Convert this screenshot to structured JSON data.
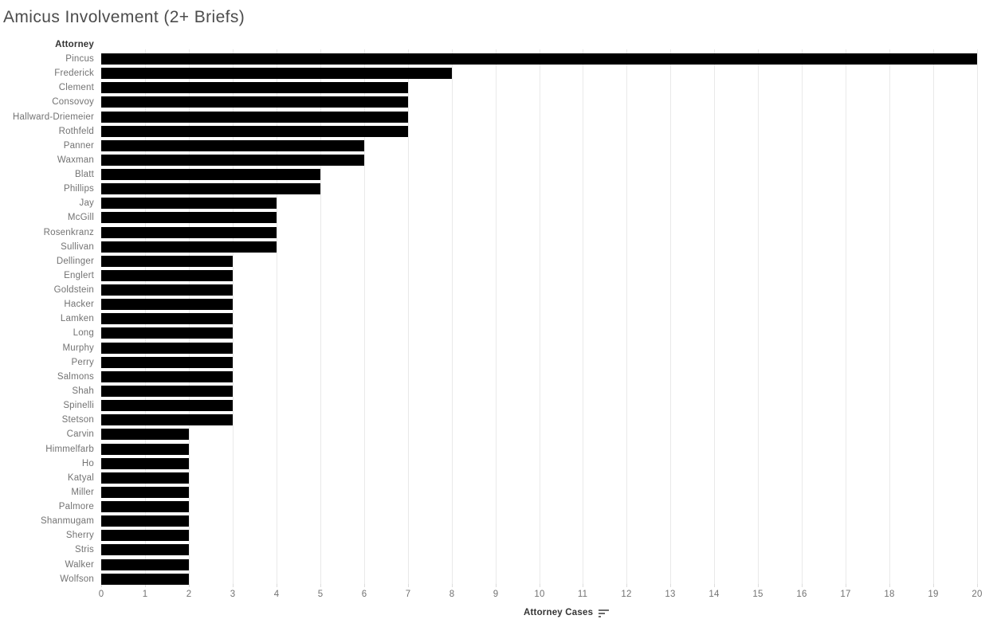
{
  "title": "Amicus Involvement (2+ Briefs)",
  "row_header": "Attorney",
  "x_axis": {
    "label": "Attorney Cases",
    "sort_icon": "sort-descending-icon"
  },
  "colors": {
    "bar": "#000000",
    "gridline": "#e9e9e9",
    "title_text": "#4c4c4c",
    "header_text": "#343434",
    "label_text": "#737373",
    "background": "#ffffff"
  },
  "chart_data": {
    "type": "bar",
    "orientation": "horizontal",
    "title": "Amicus Involvement (2+ Briefs)",
    "xlabel": "Attorney Cases",
    "ylabel": "Attorney",
    "xlim": [
      0,
      20
    ],
    "xticks": [
      0,
      1,
      2,
      3,
      4,
      5,
      6,
      7,
      8,
      9,
      10,
      11,
      12,
      13,
      14,
      15,
      16,
      17,
      18,
      19,
      20
    ],
    "grid": true,
    "legend": false,
    "sort": "descending",
    "categories": [
      "Pincus",
      "Frederick",
      "Clement",
      "Consovoy",
      "Hallward-Driemeier",
      "Rothfeld",
      "Panner",
      "Waxman",
      "Blatt",
      "Phillips",
      "Jay",
      "McGill",
      "Rosenkranz",
      "Sullivan",
      "Dellinger",
      "Englert",
      "Goldstein",
      "Hacker",
      "Lamken",
      "Long",
      "Murphy",
      "Perry",
      "Salmons",
      "Shah",
      "Spinelli",
      "Stetson",
      "Carvin",
      "Himmelfarb",
      "Ho",
      "Katyal",
      "Miller",
      "Palmore",
      "Shanmugam",
      "Sherry",
      "Stris",
      "Walker",
      "Wolfson"
    ],
    "values": [
      20,
      8,
      7,
      7,
      7,
      7,
      6,
      6,
      5,
      5,
      4,
      4,
      4,
      4,
      3,
      3,
      3,
      3,
      3,
      3,
      3,
      3,
      3,
      3,
      3,
      3,
      2,
      2,
      2,
      2,
      2,
      2,
      2,
      2,
      2,
      2,
      2
    ]
  }
}
